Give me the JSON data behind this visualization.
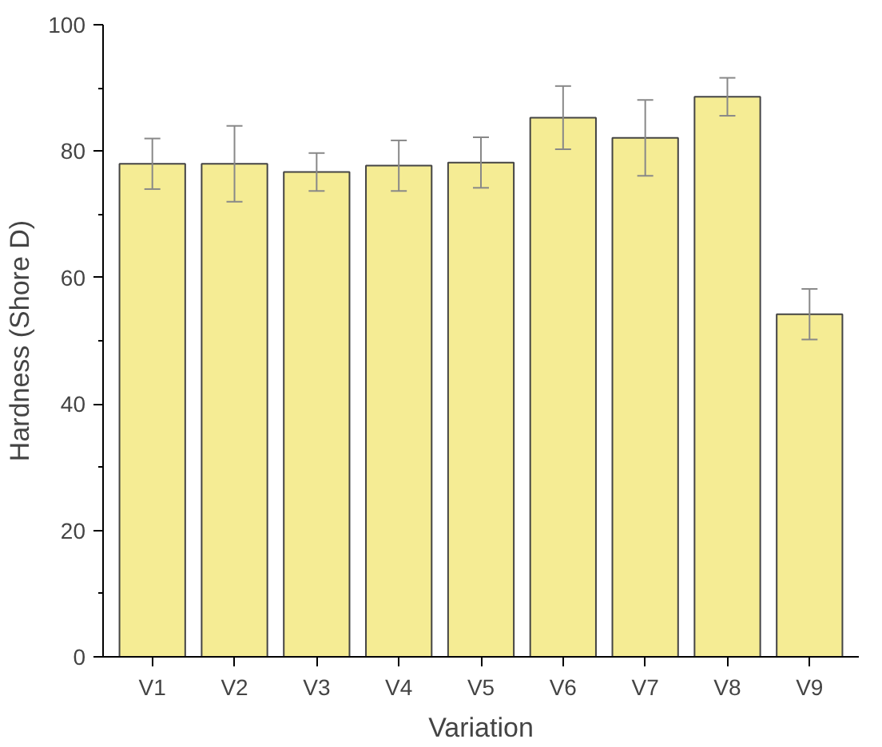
{
  "chart_data": {
    "type": "bar",
    "xlabel": "Variation",
    "ylabel": "Hardness (Shore D)",
    "categories": [
      "V1",
      "V2",
      "V3",
      "V4",
      "V5",
      "V6",
      "V7",
      "V8",
      "V9"
    ],
    "values": [
      78,
      78,
      76.7,
      77.7,
      78.2,
      85.3,
      82.1,
      88.6,
      54.2
    ],
    "errors": [
      4,
      6,
      3,
      4,
      4,
      5,
      6,
      3,
      4
    ],
    "color": "#f5ec94",
    "ylim": [
      0,
      100
    ],
    "yticks": [
      0,
      {
        "value": 10,
        "label": null
      },
      20,
      {
        "value": 30,
        "label": null
      },
      40,
      {
        "value": 50,
        "label": null
      },
      60,
      {
        "value": 70,
        "label": null
      },
      80,
      {
        "value": 90,
        "label": null
      },
      100
    ],
    "grid": false
  }
}
